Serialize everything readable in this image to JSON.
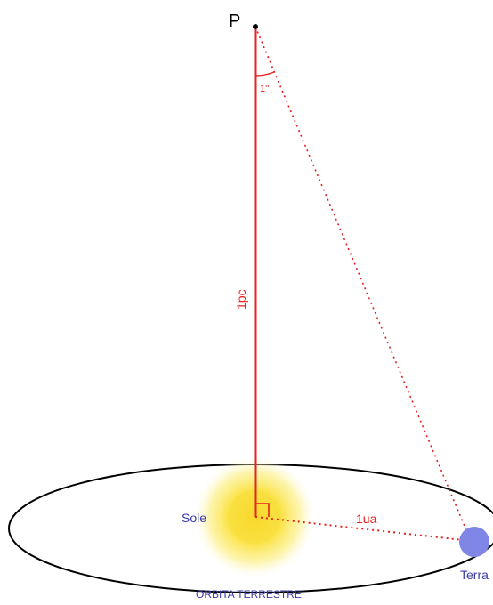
{
  "labels": {
    "point": "P",
    "angle": "1''",
    "distance_pc": "1pc",
    "distance_ua": "1ua",
    "sun": "Sole",
    "earth": "Terra",
    "orbit": "ORBITA TERRESTRE"
  },
  "colors": {
    "distance_line": "#e8201e",
    "text_red": "#e8201e",
    "text_blue": "#3a3aa8",
    "sun_glow": "#f7e84a",
    "earth": "#7f86e6",
    "orbit": "#000000"
  }
}
